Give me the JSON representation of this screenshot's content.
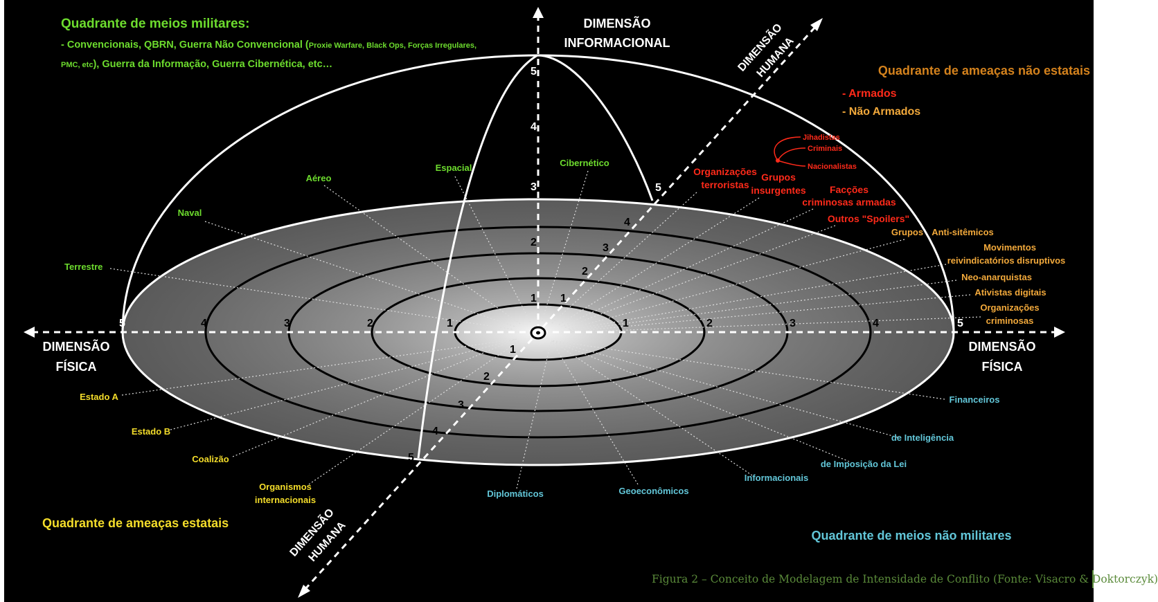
{
  "colors": {
    "military": "#6ddc2e",
    "nonstate_header": "#d4821d",
    "armed": "#ff2a1a",
    "unarmed": "#f2a93b",
    "state": "#f4dd2a",
    "nonmilitary": "#62c6d8",
    "axis": "#ffffff",
    "caption": "#5a8a3a"
  },
  "military_quadrant": {
    "title": "Quadrante de meios militares:",
    "line1": "- Convencionais, QBRN, Guerra Não Convencional (",
    "line1_small": "Proxie Warfare, Black Ops, Forças Irregulares,",
    "line2_small": "PMC, etc",
    "line2": "), Guerra da Informação, Guerra Cibernética, etc…",
    "items": [
      "Espacial",
      "Cibernético",
      "Aéreo",
      "Naval",
      "Terrestre"
    ]
  },
  "nonstate_quadrant": {
    "title": "Quadrante de ameaças não estatais",
    "armed_label": "- Armados",
    "unarmed_label": "- Não Armados",
    "insurgent_types": [
      "Jihadistas",
      "Criminais",
      "Nacionalistas"
    ],
    "armed_items": [
      "Organizações",
      "terroristas",
      "Grupos",
      "insurgentes",
      "Facções",
      "criminosas armadas",
      "Outros \"Spoilers\""
    ],
    "unarmed_items": [
      "Grupos",
      "Anti-sitêmicos",
      "Movimentos",
      "reivindicatórios disruptivos",
      "Neo-anarquistas",
      "Ativistas digitais",
      "Organizações",
      "criminosas"
    ]
  },
  "state_quadrant": {
    "title": "Quadrante de ameaças estatais",
    "items": [
      "Estado A",
      "Estado B",
      "Coalizão",
      "Organismos",
      "internacionais"
    ]
  },
  "nonmilitary_quadrant": {
    "title": "Quadrante de meios não militares",
    "items": [
      "Financeiros",
      "de Inteligência",
      "de Imposição da Lei",
      "Informacionais",
      "Geoeconômicos",
      "Diplomáticos"
    ]
  },
  "axes": {
    "informational": [
      "DIMENSÃO",
      "INFORMACIONAL"
    ],
    "physical": [
      "DIMENSÃO",
      "FÍSICA"
    ],
    "human": [
      "DIMENSÃO",
      "HUMANA"
    ]
  },
  "scale_numbers": [
    "1",
    "2",
    "3",
    "4",
    "5"
  ],
  "caption": "Figura 2 – Conceito de Modelagem de Intensidade de Conflito (Fonte: Visacro & Doktorczyk)"
}
